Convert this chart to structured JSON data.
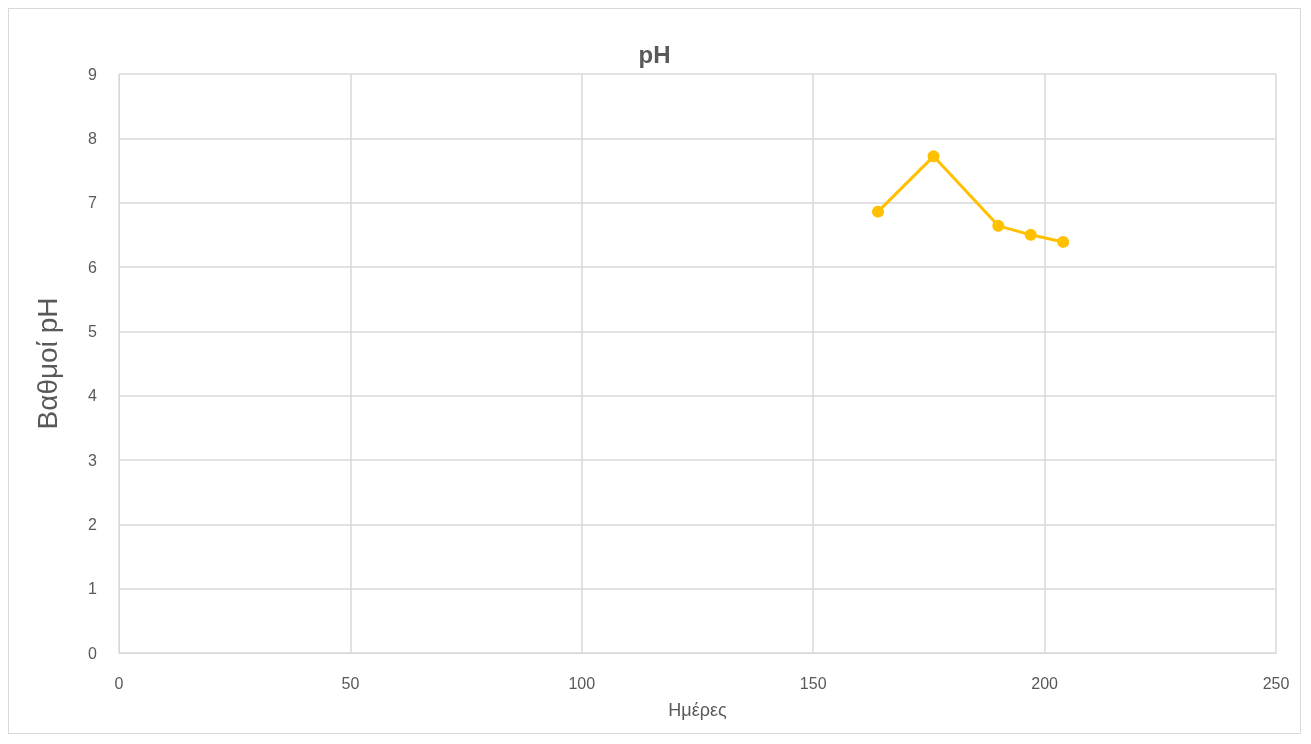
{
  "chart_data": {
    "type": "line",
    "title": "pH",
    "xlabel": "Ημέρες",
    "ylabel": "Βαθμοί pH",
    "x": [
      164,
      176,
      190,
      197,
      204
    ],
    "series": [
      {
        "color": "#ffc000",
        "values": [
          6.86,
          7.72,
          6.64,
          6.5,
          6.39
        ]
      }
    ],
    "xlim": [
      0,
      250
    ],
    "xticks": [
      0,
      50,
      100,
      150,
      200,
      250
    ],
    "ylim": [
      0,
      9
    ],
    "yticks": [
      0,
      1,
      2,
      3,
      4,
      5,
      6,
      7,
      8,
      9
    ],
    "grid": true,
    "marker": "circle",
    "line_style": "solid"
  }
}
